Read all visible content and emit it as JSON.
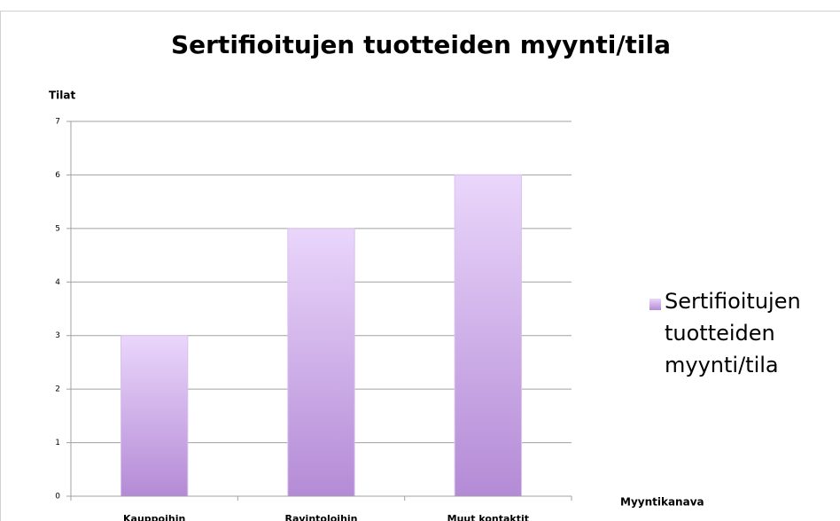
{
  "chart_data": {
    "type": "bar",
    "title": "Sertifioitujen tuotteiden myynti/tila",
    "y_label": "Tilat",
    "x_label": "Myyntikanava",
    "categories": [
      "Kauppoihin",
      "Ravintoloihin",
      "Muut kontaktit"
    ],
    "series": [
      {
        "name": "Sertifioitujen tuotteiden myynti/tila",
        "color": "#b48bd6",
        "values": [
          3,
          5,
          6
        ]
      }
    ],
    "ylim": [
      0,
      7
    ],
    "yticks": [
      0,
      1,
      2,
      3,
      4,
      5,
      6,
      7
    ],
    "grid": true,
    "legend": "right"
  }
}
